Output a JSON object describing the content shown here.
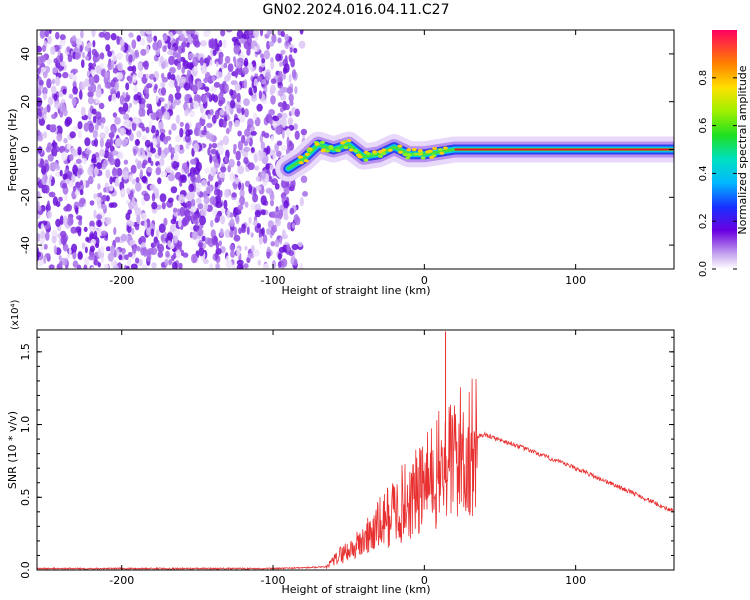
{
  "title": "GN02.2024.016.04.11.C27",
  "chart_data": [
    {
      "type": "heatmap",
      "xlabel": "Height of straight line (km)",
      "ylabel": "Frequency (Hz)",
      "xlim": [
        -256,
        165
      ],
      "ylim": [
        -50,
        50
      ],
      "xticks": [
        -200,
        -100,
        0,
        100
      ],
      "yticks": [
        -40,
        -20,
        0,
        20,
        40
      ],
      "colorbar": {
        "label": "Normalized spectral amplitude",
        "range": [
          0,
          1
        ],
        "ticks": [
          "0.0",
          "0.2",
          "0.4",
          "0.6",
          "0.8"
        ],
        "tick_values": [
          0.0,
          0.2,
          0.4,
          0.6,
          0.8
        ]
      },
      "noise_region_x": [
        -256,
        -85
      ],
      "signal_track": [
        {
          "x": -90,
          "y": -8
        },
        {
          "x": -80,
          "y": -4
        },
        {
          "x": -70,
          "y": 2
        },
        {
          "x": -60,
          "y": 0
        },
        {
          "x": -50,
          "y": 2
        },
        {
          "x": -40,
          "y": -3
        },
        {
          "x": -30,
          "y": -2
        },
        {
          "x": -20,
          "y": 1
        },
        {
          "x": -10,
          "y": -2
        },
        {
          "x": 0,
          "y": -2
        },
        {
          "x": 20,
          "y": 0
        },
        {
          "x": 60,
          "y": 0
        },
        {
          "x": 100,
          "y": 0
        },
        {
          "x": 165,
          "y": 0
        }
      ]
    },
    {
      "type": "line",
      "xlabel": "Height of straight line (km)",
      "ylabel": "SNR (10 * v/v)",
      "multiplier": "(x10⁴)",
      "xlim": [
        -256,
        165
      ],
      "ylim": [
        0,
        1.65
      ],
      "xticks": [
        -200,
        -100,
        0,
        100
      ],
      "yticks": [
        "0.0",
        "0.5",
        "1.0",
        "1.5"
      ],
      "ytick_values": [
        0.0,
        0.5,
        1.0,
        1.5
      ],
      "series": [
        {
          "color": "#e83030",
          "x": [
            -256,
            -100,
            -65,
            -55,
            -45,
            -35,
            -25,
            -15,
            -5,
            5,
            15,
            25,
            35,
            40,
            60,
            80,
            100,
            120,
            140,
            165
          ],
          "y": [
            0.01,
            0.01,
            0.02,
            0.12,
            0.18,
            0.28,
            0.4,
            0.5,
            0.58,
            0.7,
            0.82,
            0.9,
            0.92,
            0.93,
            0.86,
            0.78,
            0.7,
            0.61,
            0.52,
            0.4
          ]
        }
      ]
    }
  ]
}
